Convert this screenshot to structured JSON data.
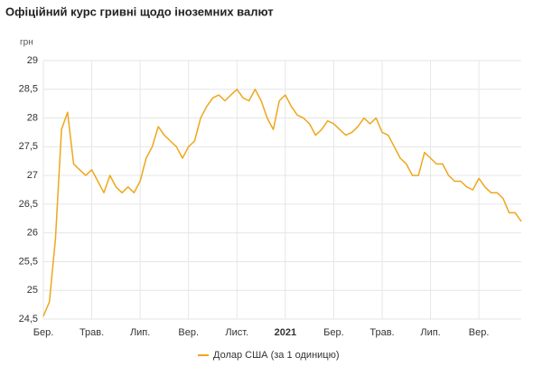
{
  "chart_data": {
    "type": "line",
    "title": "Офіційний курс гривні щодо іноземних валют",
    "y_label": "грн",
    "categories": [
      "Бер.",
      null,
      null,
      null,
      null,
      null,
      null,
      null,
      "Трав.",
      null,
      null,
      null,
      null,
      null,
      null,
      null,
      "Лип.",
      null,
      null,
      null,
      null,
      null,
      null,
      null,
      "Вер.",
      null,
      null,
      null,
      null,
      null,
      null,
      null,
      "Лист.",
      null,
      null,
      null,
      null,
      null,
      null,
      null,
      "2021",
      null,
      null,
      null,
      null,
      null,
      null,
      null,
      "Бер.",
      null,
      null,
      null,
      null,
      null,
      null,
      null,
      "Трав.",
      null,
      null,
      null,
      null,
      null,
      null,
      null,
      "Лип.",
      null,
      null,
      null,
      null,
      null,
      null,
      null,
      "Вер.",
      null,
      null,
      null,
      null,
      null,
      null,
      null
    ],
    "series": [
      {
        "name": "Долар США (за 1 одиницю)",
        "color": "#eea71c",
        "values": [
          24.55,
          24.8,
          25.9,
          27.8,
          28.1,
          27.2,
          27.1,
          27.0,
          27.1,
          26.9,
          26.7,
          27.0,
          26.8,
          26.7,
          26.8,
          26.7,
          26.9,
          27.3,
          27.5,
          27.85,
          27.7,
          27.6,
          27.5,
          27.3,
          27.5,
          27.6,
          28.0,
          28.2,
          28.35,
          28.4,
          28.3,
          28.4,
          28.5,
          28.35,
          28.3,
          28.5,
          28.3,
          28.0,
          27.8,
          28.3,
          28.4,
          28.2,
          28.05,
          28.0,
          27.9,
          27.7,
          27.8,
          27.95,
          27.9,
          27.8,
          27.7,
          27.75,
          27.85,
          28.0,
          27.9,
          28.0,
          27.75,
          27.7,
          27.5,
          27.3,
          27.2,
          27.0,
          27.0,
          27.4,
          27.3,
          27.2,
          27.2,
          27.0,
          26.9,
          26.9,
          26.8,
          26.75,
          26.95,
          26.8,
          26.7,
          26.7,
          26.6,
          26.35,
          26.35,
          26.2
        ]
      }
    ],
    "ylim": [
      24.5,
      29
    ],
    "yticks": [
      {
        "value": 24.5,
        "label": "24,5"
      },
      25,
      {
        "value": 25.5,
        "label": "25,5"
      },
      26,
      {
        "value": 26.5,
        "label": "26,5"
      },
      27,
      {
        "value": 27.5,
        "label": "27,5"
      },
      28,
      {
        "value": 28.5,
        "label": "28,5"
      },
      29
    ],
    "grid": true,
    "legend": "bottom"
  }
}
